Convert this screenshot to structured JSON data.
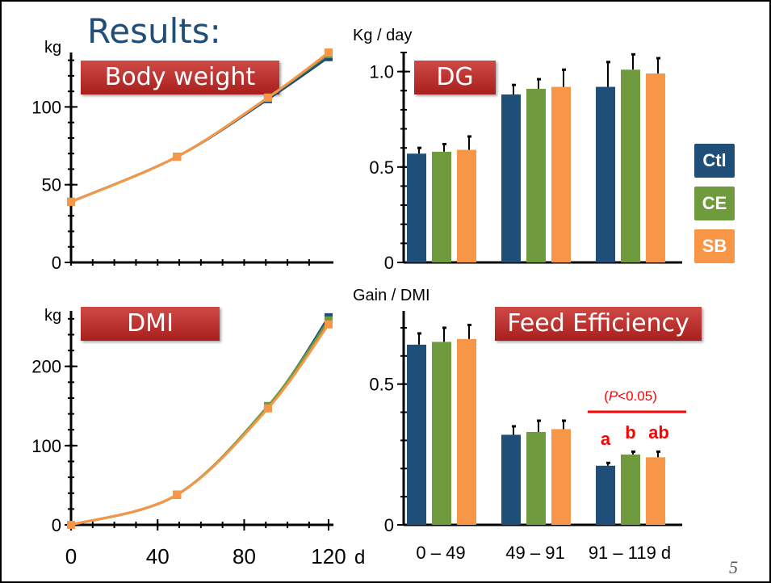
{
  "slide": {
    "title": "Results:",
    "page_number": "5",
    "legend": [
      {
        "label": "Ctl",
        "color": "#1f4e79"
      },
      {
        "label": "CE",
        "color": "#6f9a3e"
      },
      {
        "label": "SB",
        "color": "#f79646"
      }
    ]
  },
  "chart_data": [
    {
      "type": "line",
      "tag": "Body weight",
      "ylabel": "kg",
      "yticks": [
        "0",
        "50",
        "100"
      ],
      "ylim": [
        0,
        135
      ],
      "x": [
        0,
        49,
        91,
        119
      ],
      "xlim": [
        0,
        119
      ],
      "series": [
        {
          "name": "Ctl",
          "values": [
            39,
            68,
            105,
            132
          ]
        },
        {
          "name": "CE",
          "values": [
            39,
            68,
            106,
            134
          ]
        },
        {
          "name": "SB",
          "values": [
            39,
            68,
            106,
            135
          ]
        }
      ],
      "error_bars": [
        [
          1,
          1.5,
          2,
          2.5
        ],
        [
          1,
          1.5,
          2,
          2.5
        ],
        [
          1,
          1.5,
          2,
          2.5
        ]
      ]
    },
    {
      "type": "bar",
      "tag": "DG",
      "ylabel": "Kg / day",
      "yticks": [
        "0",
        "0.5",
        "1.0"
      ],
      "ylim": [
        0,
        1.1
      ],
      "categories": [
        "0 – 49",
        "49 – 91",
        "91 – 119 d"
      ],
      "series": [
        {
          "name": "Ctl",
          "values": [
            0.57,
            0.88,
            0.92
          ]
        },
        {
          "name": "CE",
          "values": [
            0.58,
            0.91,
            1.01
          ]
        },
        {
          "name": "SB",
          "values": [
            0.59,
            0.92,
            0.99
          ]
        }
      ],
      "error_bars": [
        [
          0.03,
          0.05,
          0.13
        ],
        [
          0.04,
          0.05,
          0.08
        ],
        [
          0.07,
          0.09,
          0.08
        ]
      ]
    },
    {
      "type": "line",
      "tag": "DMI",
      "ylabel": "kg",
      "yticks": [
        "0",
        "100",
        "200"
      ],
      "ylim": [
        0,
        270
      ],
      "x": [
        0,
        49,
        91,
        119
      ],
      "xlim": [
        0,
        119
      ],
      "xticks": [
        "0",
        "40",
        "80",
        "120"
      ],
      "xtick_values": [
        0,
        40,
        80,
        119
      ],
      "xunit": "d",
      "series": [
        {
          "name": "Ctl",
          "values": [
            0,
            38,
            149,
            262
          ]
        },
        {
          "name": "CE",
          "values": [
            0,
            38,
            150,
            258
          ]
        },
        {
          "name": "SB",
          "values": [
            0,
            38,
            147,
            253
          ]
        }
      ],
      "error_bars": [
        [
          2,
          3,
          4,
          5
        ],
        [
          2,
          3,
          4,
          5
        ],
        [
          2,
          3,
          4,
          5
        ]
      ]
    },
    {
      "type": "bar",
      "tag": "Feed Efficiency",
      "ylabel": "Gain / DMI",
      "yticks": [
        "0",
        "0.5"
      ],
      "ylim": [
        0,
        0.76
      ],
      "categories": [
        "0 – 49",
        "49 – 91",
        "91 – 119 d"
      ],
      "series": [
        {
          "name": "Ctl",
          "values": [
            0.64,
            0.32,
            0.21
          ]
        },
        {
          "name": "CE",
          "values": [
            0.65,
            0.33,
            0.25
          ]
        },
        {
          "name": "SB",
          "values": [
            0.66,
            0.34,
            0.24
          ]
        }
      ],
      "error_bars": [
        [
          0.04,
          0.03,
          0.01
        ],
        [
          0.05,
          0.04,
          0.01
        ],
        [
          0.05,
          0.03,
          0.02
        ]
      ],
      "annotation": {
        "p_italic": "P",
        "p_rest": "<0.05)",
        "p_open": "(",
        "letters": [
          "a",
          "b",
          "ab"
        ],
        "color": "#ff0000"
      }
    }
  ]
}
